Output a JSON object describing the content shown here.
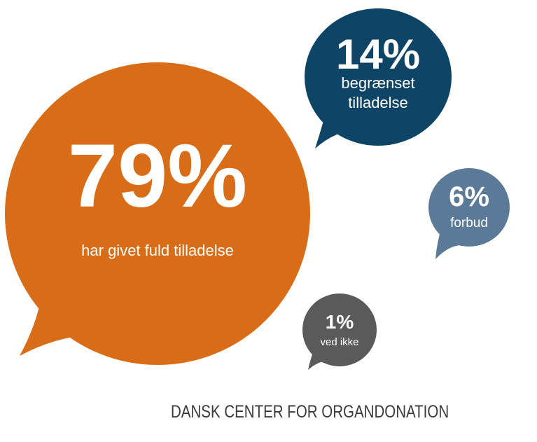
{
  "chart_data": {
    "type": "bubble-infographic",
    "title": "",
    "unit": "%",
    "series": [
      {
        "value": 79,
        "display": "79%",
        "label_lines": [
          "har givet fuld tilladelse"
        ],
        "color": "#D96C17"
      },
      {
        "value": 14,
        "display": "14%",
        "label_lines": [
          "begrænset",
          "tilladelse"
        ],
        "color": "#0E4466"
      },
      {
        "value": 6,
        "display": "6%",
        "label_lines": [
          "forbud"
        ],
        "color": "#5B7A97"
      },
      {
        "value": 1,
        "display": "1%",
        "label_lines": [
          "ved ikke"
        ],
        "color": "#5A5A5A"
      }
    ]
  },
  "logo": {
    "text": "DANSK CENTER FOR ORGANDONATION",
    "icon": "organ-donation-logo-icon",
    "colors": [
      "#1E3A5F",
      "#2E86C1"
    ]
  }
}
